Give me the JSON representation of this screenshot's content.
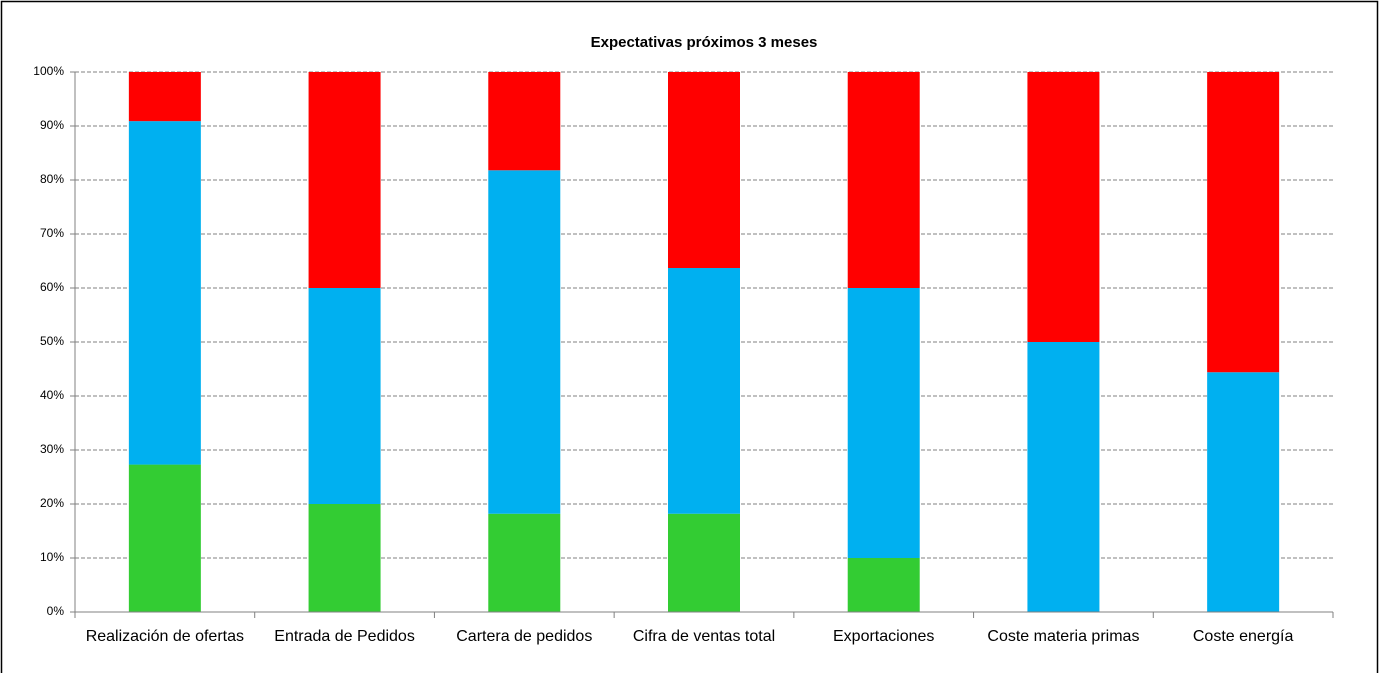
{
  "chart_data": {
    "type": "stacked_bar",
    "title": "Expectativas próximos 3 meses",
    "categories": [
      "Realización de ofertas",
      "Entrada de Pedidos",
      "Cartera de pedidos",
      "Cifra de ventas total",
      "Exportaciones",
      "Coste materia primas",
      "Coste energía"
    ],
    "series": [
      {
        "color": "#33cc33",
        "values": [
          27.3,
          20,
          18.2,
          18.2,
          10,
          0,
          0
        ]
      },
      {
        "color": "#00b0f0",
        "values": [
          63.6,
          40,
          63.6,
          45.5,
          50,
          50,
          44.4
        ]
      },
      {
        "color": "#ff0000",
        "values": [
          9.1,
          40,
          18.2,
          36.3,
          40,
          50,
          55.6
        ]
      }
    ],
    "ylim": [
      0,
      100
    ],
    "yticks": [
      {
        "value": 0,
        "label": "0%"
      },
      {
        "value": 10,
        "label": "10%"
      },
      {
        "value": 20,
        "label": "20%"
      },
      {
        "value": 30,
        "label": "30%"
      },
      {
        "value": 40,
        "label": "40%"
      },
      {
        "value": 50,
        "label": "50%"
      },
      {
        "value": 60,
        "label": "60%"
      },
      {
        "value": 70,
        "label": "70%"
      },
      {
        "value": 80,
        "label": "80%"
      },
      {
        "value": 90,
        "label": "90%"
      },
      {
        "value": 100,
        "label": "100%"
      }
    ],
    "grid": true
  }
}
